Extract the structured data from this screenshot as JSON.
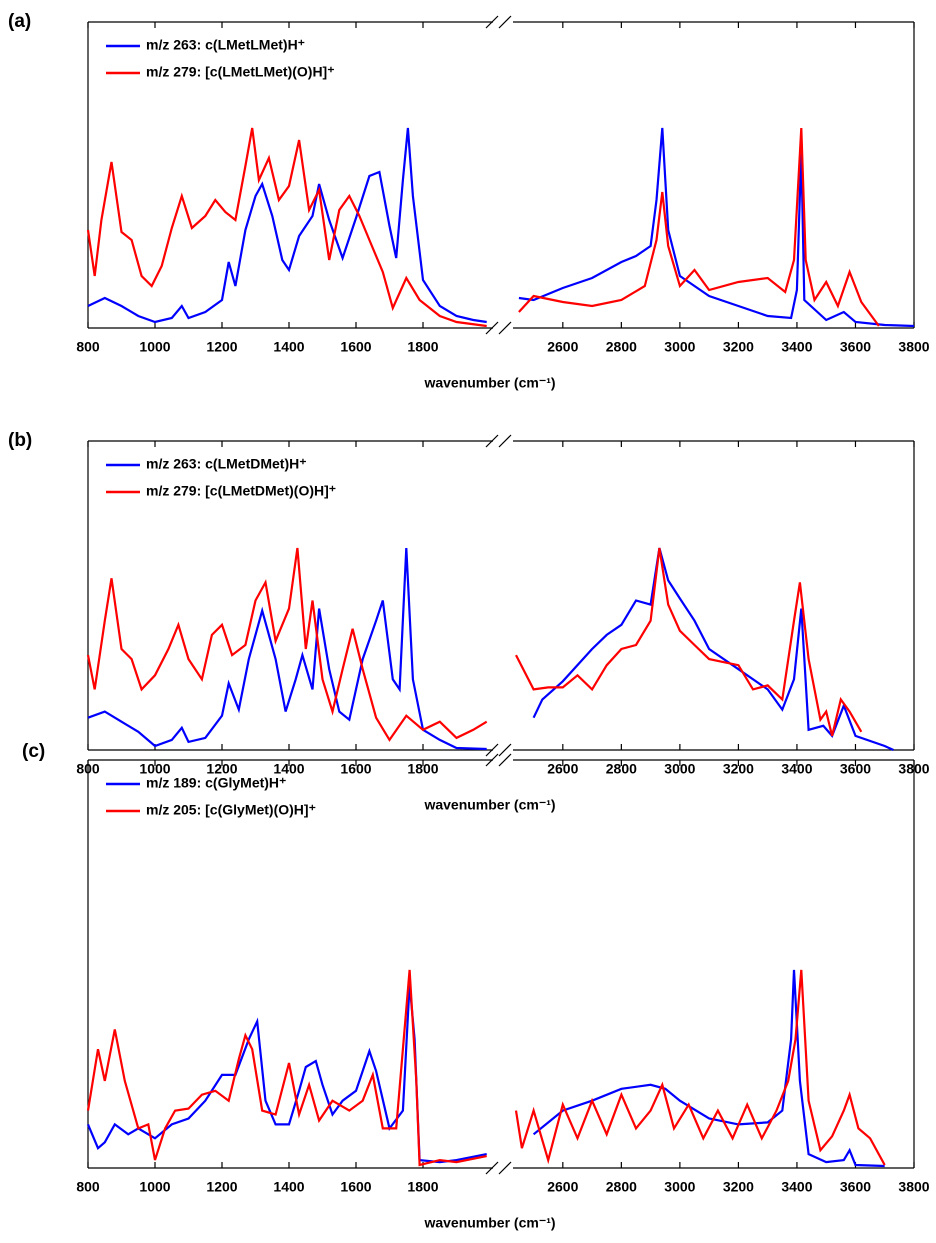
{
  "chart_data": [
    {
      "type": "line",
      "label": "(a)",
      "xlabel": "wavenumber (cm⁻¹)",
      "xlim": [
        800,
        3800
      ],
      "xbreak": [
        2000,
        2440
      ],
      "ylim": [
        0,
        1.53
      ],
      "xticks": [
        800,
        1000,
        1200,
        1400,
        1600,
        1800,
        2600,
        2800,
        3000,
        3200,
        3400,
        3600,
        3800
      ],
      "series": [
        {
          "name": "m/z 263: c(LMetLMet)H⁺",
          "color": "#0000ff",
          "x": [
            800,
            850,
            900,
            950,
            1000,
            1050,
            1080,
            1100,
            1150,
            1200,
            1220,
            1240,
            1270,
            1300,
            1320,
            1350,
            1380,
            1400,
            1430,
            1470,
            1490,
            1520,
            1560,
            1600,
            1640,
            1670,
            1700,
            1720,
            1740,
            1755,
            1770,
            1800,
            1850,
            1900,
            1950,
            1990,
            2450,
            2500,
            2600,
            2700,
            2800,
            2850,
            2900,
            2920,
            2940,
            2960,
            3000,
            3100,
            3200,
            3300,
            3380,
            3400,
            3415,
            3425,
            3500,
            3560,
            3600,
            3700,
            3800
          ],
          "values": [
            0.11,
            0.15,
            0.11,
            0.06,
            0.03,
            0.05,
            0.11,
            0.05,
            0.08,
            0.14,
            0.33,
            0.21,
            0.49,
            0.66,
            0.72,
            0.56,
            0.34,
            0.29,
            0.46,
            0.56,
            0.72,
            0.54,
            0.35,
            0.55,
            0.76,
            0.78,
            0.51,
            0.35,
            0.74,
            1.0,
            0.66,
            0.24,
            0.11,
            0.06,
            0.04,
            0.03,
            0.15,
            0.14,
            0.2,
            0.25,
            0.33,
            0.36,
            0.41,
            0.64,
            1.0,
            0.49,
            0.26,
            0.16,
            0.11,
            0.06,
            0.05,
            0.19,
            0.89,
            0.14,
            0.04,
            0.08,
            0.03,
            0.015,
            0.01
          ]
        },
        {
          "name": "m/z 279: [c(LMetLMet)(O)H]⁺",
          "color": "#ff0000",
          "x": [
            800,
            820,
            840,
            870,
            900,
            930,
            960,
            990,
            1020,
            1050,
            1080,
            1110,
            1150,
            1180,
            1210,
            1240,
            1270,
            1290,
            1310,
            1340,
            1370,
            1400,
            1430,
            1460,
            1490,
            1520,
            1550,
            1580,
            1610,
            1640,
            1680,
            1710,
            1750,
            1790,
            1850,
            1900,
            1990,
            2450,
            2500,
            2600,
            2700,
            2800,
            2880,
            2920,
            2940,
            2960,
            3000,
            3050,
            3100,
            3200,
            3300,
            3360,
            3390,
            3415,
            3430,
            3460,
            3500,
            3540,
            3580,
            3620,
            3680
          ],
          "values": [
            0.49,
            0.26,
            0.54,
            0.83,
            0.48,
            0.44,
            0.26,
            0.21,
            0.31,
            0.5,
            0.66,
            0.5,
            0.56,
            0.64,
            0.58,
            0.54,
            0.81,
            1.0,
            0.74,
            0.85,
            0.64,
            0.71,
            0.94,
            0.59,
            0.69,
            0.34,
            0.59,
            0.66,
            0.56,
            0.44,
            0.28,
            0.1,
            0.25,
            0.14,
            0.06,
            0.03,
            0.01,
            0.08,
            0.16,
            0.13,
            0.11,
            0.14,
            0.21,
            0.44,
            0.68,
            0.41,
            0.21,
            0.29,
            0.19,
            0.23,
            0.25,
            0.18,
            0.34,
            1.0,
            0.34,
            0.14,
            0.23,
            0.11,
            0.28,
            0.13,
            0.01
          ]
        }
      ]
    },
    {
      "type": "line",
      "label": "(b)",
      "xlabel": "wavenumber (cm⁻¹)",
      "xlim": [
        800,
        3800
      ],
      "xbreak": [
        2000,
        2440
      ],
      "ylim": [
        0,
        1.53
      ],
      "xticks": [
        800,
        1000,
        1200,
        1400,
        1600,
        1800,
        2600,
        2800,
        3000,
        3200,
        3400,
        3600,
        3800
      ],
      "series": [
        {
          "name": "m/z 263: c(LMetDMet)H⁺",
          "color": "#0000ff",
          "x": [
            800,
            850,
            900,
            950,
            1000,
            1050,
            1080,
            1100,
            1150,
            1200,
            1220,
            1250,
            1280,
            1320,
            1360,
            1390,
            1420,
            1440,
            1470,
            1490,
            1520,
            1550,
            1580,
            1620,
            1660,
            1680,
            1710,
            1730,
            1750,
            1770,
            1800,
            1850,
            1900,
            1990,
            2500,
            2530,
            2600,
            2700,
            2750,
            2800,
            2850,
            2900,
            2930,
            2960,
            3000,
            3050,
            3100,
            3200,
            3300,
            3350,
            3390,
            3415,
            3440,
            3490,
            3520,
            3560,
            3600,
            3700,
            3730
          ],
          "values": [
            0.16,
            0.19,
            0.14,
            0.09,
            0.02,
            0.05,
            0.11,
            0.04,
            0.06,
            0.17,
            0.33,
            0.2,
            0.45,
            0.69,
            0.45,
            0.19,
            0.35,
            0.47,
            0.3,
            0.7,
            0.4,
            0.19,
            0.15,
            0.45,
            0.64,
            0.74,
            0.35,
            0.3,
            1.0,
            0.35,
            0.1,
            0.05,
            0.01,
            0.005,
            0.16,
            0.25,
            0.34,
            0.5,
            0.57,
            0.62,
            0.74,
            0.72,
            1.0,
            0.84,
            0.75,
            0.64,
            0.5,
            0.4,
            0.3,
            0.2,
            0.35,
            0.7,
            0.1,
            0.12,
            0.07,
            0.22,
            0.07,
            0.02,
            0
          ]
        },
        {
          "name": "m/z 279: [c(LMetDMet)(O)H]⁺",
          "color": "#ff0000",
          "x": [
            800,
            820,
            850,
            870,
            900,
            930,
            960,
            1000,
            1040,
            1070,
            1100,
            1140,
            1170,
            1200,
            1230,
            1270,
            1300,
            1330,
            1360,
            1400,
            1425,
            1450,
            1470,
            1500,
            1530,
            1560,
            1590,
            1620,
            1660,
            1700,
            1750,
            1800,
            1850,
            1900,
            1950,
            1990,
            2440,
            2500,
            2550,
            2600,
            2650,
            2700,
            2750,
            2800,
            2850,
            2900,
            2930,
            2960,
            3000,
            3050,
            3100,
            3200,
            3250,
            3300,
            3350,
            3390,
            3410,
            3440,
            3480,
            3500,
            3520,
            3550,
            3580,
            3620
          ],
          "values": [
            0.47,
            0.3,
            0.64,
            0.85,
            0.5,
            0.45,
            0.3,
            0.37,
            0.5,
            0.62,
            0.45,
            0.35,
            0.57,
            0.62,
            0.47,
            0.52,
            0.74,
            0.83,
            0.54,
            0.7,
            1.0,
            0.5,
            0.74,
            0.35,
            0.19,
            0.4,
            0.6,
            0.4,
            0.16,
            0.05,
            0.17,
            0.1,
            0.14,
            0.06,
            0.1,
            0.14,
            0.47,
            0.3,
            0.31,
            0.31,
            0.37,
            0.3,
            0.42,
            0.5,
            0.52,
            0.64,
            1.0,
            0.72,
            0.59,
            0.52,
            0.45,
            0.42,
            0.3,
            0.32,
            0.25,
            0.64,
            0.83,
            0.45,
            0.15,
            0.19,
            0.07,
            0.25,
            0.19,
            0.09
          ]
        }
      ]
    },
    {
      "type": "line",
      "label": "(c)",
      "xlabel": "wavenumber (cm⁻¹)",
      "xlim": [
        800,
        3800
      ],
      "xbreak": [
        2000,
        2440
      ],
      "ylim": [
        0,
        2.06
      ],
      "xticks": [
        800,
        1000,
        1200,
        1400,
        1600,
        1800,
        2600,
        2800,
        3000,
        3200,
        3400,
        3600,
        3800
      ],
      "series": [
        {
          "name": "m/z 189: c(GlyMet)H⁺",
          "color": "#0000ff",
          "x": [
            800,
            830,
            850,
            880,
            920,
            950,
            1000,
            1050,
            1100,
            1150,
            1200,
            1240,
            1280,
            1305,
            1330,
            1360,
            1400,
            1430,
            1450,
            1480,
            1500,
            1530,
            1560,
            1600,
            1640,
            1660,
            1700,
            1740,
            1760,
            1775,
            1790,
            1850,
            1900,
            1990,
            2500,
            2600,
            2700,
            2800,
            2900,
            2950,
            3000,
            3100,
            3200,
            3300,
            3350,
            3380,
            3390,
            3410,
            3440,
            3500,
            3560,
            3580,
            3600,
            3700
          ],
          "values": [
            0.22,
            0.1,
            0.13,
            0.22,
            0.17,
            0.2,
            0.15,
            0.22,
            0.25,
            0.34,
            0.47,
            0.47,
            0.65,
            0.74,
            0.34,
            0.22,
            0.22,
            0.39,
            0.51,
            0.54,
            0.42,
            0.27,
            0.34,
            0.39,
            0.59,
            0.49,
            0.2,
            0.29,
            0.93,
            0.65,
            0.04,
            0.03,
            0.04,
            0.07,
            0.17,
            0.29,
            0.34,
            0.4,
            0.42,
            0.4,
            0.34,
            0.25,
            0.22,
            0.23,
            0.29,
            0.65,
            1.0,
            0.44,
            0.07,
            0.03,
            0.04,
            0.09,
            0.015,
            0.01
          ]
        },
        {
          "name": "m/z 205: [c(GlyMet)(O)H]⁺",
          "color": "#ff0000",
          "x": [
            800,
            830,
            850,
            880,
            910,
            950,
            980,
            1000,
            1030,
            1060,
            1100,
            1140,
            1180,
            1220,
            1250,
            1270,
            1290,
            1320,
            1360,
            1400,
            1430,
            1460,
            1490,
            1530,
            1580,
            1620,
            1650,
            1680,
            1720,
            1760,
            1780,
            1790,
            1850,
            1900,
            1990,
            2440,
            2460,
            2500,
            2550,
            2600,
            2650,
            2700,
            2750,
            2800,
            2850,
            2900,
            2940,
            2980,
            3030,
            3080,
            3130,
            3180,
            3230,
            3280,
            3330,
            3370,
            3395,
            3415,
            3440,
            3480,
            3520,
            3560,
            3580,
            3610,
            3650,
            3700
          ],
          "values": [
            0.29,
            0.6,
            0.44,
            0.7,
            0.44,
            0.2,
            0.22,
            0.04,
            0.2,
            0.29,
            0.3,
            0.37,
            0.39,
            0.34,
            0.55,
            0.67,
            0.6,
            0.29,
            0.27,
            0.53,
            0.27,
            0.42,
            0.24,
            0.34,
            0.29,
            0.34,
            0.47,
            0.2,
            0.2,
            1.0,
            0.44,
            0.015,
            0.04,
            0.03,
            0.06,
            0.29,
            0.1,
            0.29,
            0.04,
            0.32,
            0.15,
            0.34,
            0.17,
            0.37,
            0.2,
            0.29,
            0.42,
            0.2,
            0.32,
            0.15,
            0.29,
            0.15,
            0.32,
            0.15,
            0.29,
            0.44,
            0.65,
            1.0,
            0.34,
            0.09,
            0.16,
            0.29,
            0.37,
            0.2,
            0.15,
            0.015
          ]
        }
      ]
    }
  ]
}
